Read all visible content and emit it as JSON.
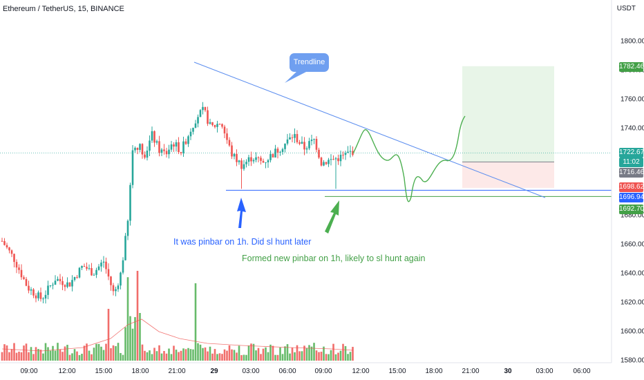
{
  "header": {
    "title": "Ethereum / TetherUS, 15, BINANCE",
    "currency": "USDT"
  },
  "chart_data": {
    "type": "candlestick",
    "symbol": "Ethereum / TetherUS",
    "interval": "15",
    "exchange": "BINANCE",
    "y_axis": {
      "ticks": [
        1580,
        1600,
        1620,
        1640,
        1660,
        1680,
        1700,
        1720,
        1740,
        1760,
        1780,
        1800
      ],
      "tick_labels": [
        "1580.00",
        "1600.00",
        "1620.00",
        "1640.00",
        "1660.00",
        "1680.00",
        "",
        "",
        "1740.00",
        "1760.00",
        "1780.00",
        "1800.00"
      ],
      "range": [
        1575,
        1822
      ]
    },
    "x_axis": {
      "labels": [
        "09:00",
        "12:00",
        "15:00",
        "18:00",
        "21:00",
        "29",
        "03:00",
        "06:00",
        "09:00",
        "12:00",
        "15:00",
        "18:00",
        "21:00",
        "30",
        "03:00",
        "06:00"
      ],
      "bold_labels": [
        "29",
        "30"
      ]
    },
    "price_badges": [
      {
        "value": "1782.46",
        "color": "#43a047"
      },
      {
        "value": "1722.67",
        "color": "#26a69a"
      },
      {
        "value": "11:02",
        "color": "#26a69a"
      },
      {
        "value": "1716.46",
        "color": "#787b86"
      },
      {
        "value": "1698.62",
        "color": "#ef5350"
      },
      {
        "value": "1696.94",
        "color": "#2962ff"
      },
      {
        "value": "1692.70",
        "color": "#43a047"
      }
    ],
    "levels": {
      "current": 1722.67,
      "entry": 1716.46,
      "target": 1782.46,
      "stop": 1698.62,
      "support_blue": 1696.94,
      "support_green": 1692.7
    },
    "annotations": [
      {
        "text": "Trendline",
        "color": "#6f9ff0"
      },
      {
        "text": "It was pinbar on 1h. Did sl hunt later",
        "color": "#2962ff"
      },
      {
        "text": "Formed new pinbar on 1h, likely to sl hunt again",
        "color": "#43a047"
      }
    ],
    "colors": {
      "up": "#26a69a",
      "down": "#ef5350",
      "volume_up": "#4caf50",
      "volume_down": "#ef5350",
      "trendline": "#5b8def",
      "projection": "#4caf50"
    },
    "grid": false
  }
}
